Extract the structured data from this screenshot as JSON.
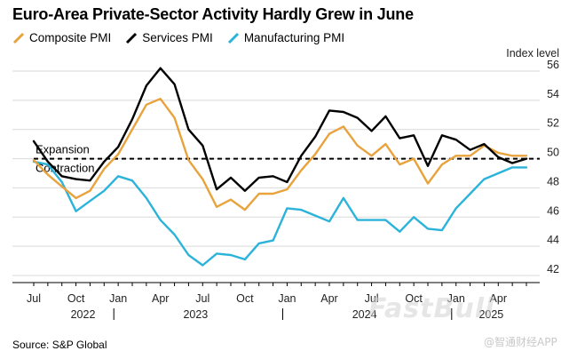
{
  "header": {
    "title": "Euro-Area Private-Sector Activity Hardly Grew in June"
  },
  "legend": [
    {
      "name": "Composite PMI",
      "color": "#E8A33C"
    },
    {
      "name": "Services PMI",
      "color": "#000000"
    },
    {
      "name": "Manufacturing PMI",
      "color": "#2BB3DA"
    }
  ],
  "footer": {
    "source": "Source: S&P Global"
  },
  "watermark": {
    "brand": "FastBull",
    "app": "@智通财经APP"
  },
  "chart_data": {
    "type": "line",
    "title": "Euro-Area Private-Sector Activity Hardly Grew in June",
    "ylabel": "Index level",
    "xlabel": "",
    "ylim": [
      42,
      56
    ],
    "yticks": [
      42,
      44,
      46,
      48,
      50,
      52,
      54,
      56
    ],
    "x": [
      "2022-07",
      "2022-08",
      "2022-09",
      "2022-10",
      "2022-11",
      "2022-12",
      "2023-01",
      "2023-02",
      "2023-03",
      "2023-04",
      "2023-05",
      "2023-06",
      "2023-07",
      "2023-08",
      "2023-09",
      "2023-10",
      "2023-11",
      "2023-12",
      "2024-01",
      "2024-02",
      "2024-03",
      "2024-04",
      "2024-05",
      "2024-06",
      "2024-07",
      "2024-08",
      "2024-09",
      "2024-10",
      "2024-11",
      "2024-12",
      "2025-01",
      "2025-02",
      "2025-03",
      "2025-04",
      "2025-05",
      "2025-06"
    ],
    "month_labels": [
      {
        "index": 0,
        "label": "Jul"
      },
      {
        "index": 3,
        "label": "Oct"
      },
      {
        "index": 6,
        "label": "Jan"
      },
      {
        "index": 9,
        "label": "Apr"
      },
      {
        "index": 12,
        "label": "Jul"
      },
      {
        "index": 15,
        "label": "Oct"
      },
      {
        "index": 18,
        "label": "Jan"
      },
      {
        "index": 21,
        "label": "Apr"
      },
      {
        "index": 24,
        "label": "Jul"
      },
      {
        "index": 27,
        "label": "Oct"
      },
      {
        "index": 30,
        "label": "Jan"
      },
      {
        "index": 33,
        "label": "Apr"
      }
    ],
    "year_labels": [
      {
        "center_index": 3.5,
        "label": "2022"
      },
      {
        "center_index": 11.5,
        "label": "2023"
      },
      {
        "center_index": 23.5,
        "label": "2024"
      },
      {
        "center_index": 32.5,
        "label": "2025"
      }
    ],
    "year_separators": [
      6,
      18,
      30
    ],
    "reference_line": {
      "value": 50,
      "above_label": "Expansion",
      "below_label": "Contraction"
    },
    "series": [
      {
        "name": "Composite PMI",
        "color": "#E8A33C",
        "values": [
          49.9,
          48.9,
          48.1,
          47.3,
          47.8,
          49.3,
          50.3,
          52.0,
          53.7,
          54.1,
          52.8,
          49.9,
          48.6,
          46.7,
          47.2,
          46.5,
          47.6,
          47.6,
          47.9,
          49.2,
          50.3,
          51.7,
          52.2,
          50.9,
          50.2,
          51.0,
          49.6,
          50.0,
          48.3,
          49.6,
          50.2,
          50.2,
          50.9,
          50.4,
          50.2,
          50.2
        ]
      },
      {
        "name": "Services PMI",
        "color": "#000000",
        "values": [
          51.2,
          49.8,
          48.8,
          48.6,
          48.5,
          49.8,
          50.8,
          52.7,
          55.0,
          56.2,
          55.1,
          52.0,
          50.9,
          47.9,
          48.7,
          47.8,
          48.7,
          48.8,
          48.4,
          50.2,
          51.5,
          53.3,
          53.2,
          52.8,
          51.9,
          52.9,
          51.4,
          51.6,
          49.5,
          51.6,
          51.3,
          50.6,
          51.0,
          50.1,
          49.7,
          50.0
        ]
      },
      {
        "name": "Manufacturing PMI",
        "color": "#2BB3DA",
        "values": [
          49.8,
          49.6,
          48.4,
          46.4,
          47.1,
          47.8,
          48.8,
          48.5,
          47.3,
          45.8,
          44.8,
          43.4,
          42.7,
          43.5,
          43.4,
          43.1,
          44.2,
          44.4,
          46.6,
          46.5,
          46.1,
          45.7,
          47.3,
          45.8,
          45.8,
          45.8,
          45.0,
          46.0,
          45.2,
          45.1,
          46.6,
          47.6,
          48.6,
          49.0,
          49.4,
          49.4
        ]
      }
    ]
  }
}
